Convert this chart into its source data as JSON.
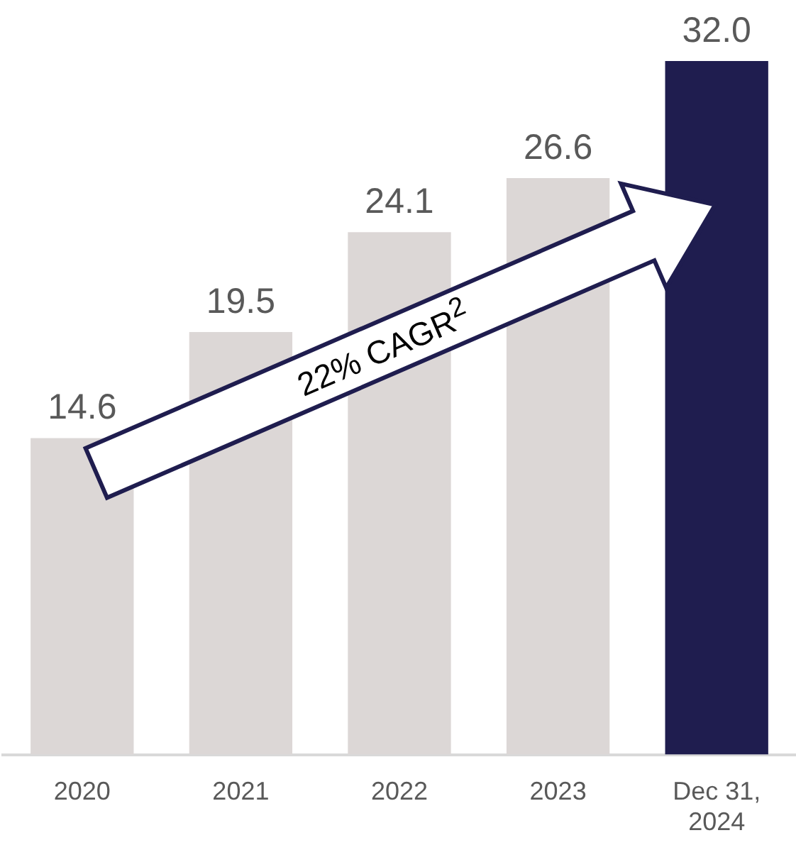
{
  "chart_data": {
    "type": "bar",
    "categories": [
      "2020",
      "2021",
      "2022",
      "2023",
      "Dec 31, 2024"
    ],
    "values": [
      14.6,
      19.5,
      24.1,
      26.6,
      32.0
    ],
    "colors": [
      "#dcd7d6",
      "#dcd7d6",
      "#dcd7d6",
      "#dcd7d6",
      "#1f1d4f"
    ],
    "value_labels": [
      "14.6",
      "19.5",
      "24.1",
      "26.6",
      "32.0"
    ],
    "annotations": [
      "22% CAGR$^{2}$"
    ],
    "grid": false,
    "legend": false,
    "tick_labels": "x"
  }
}
